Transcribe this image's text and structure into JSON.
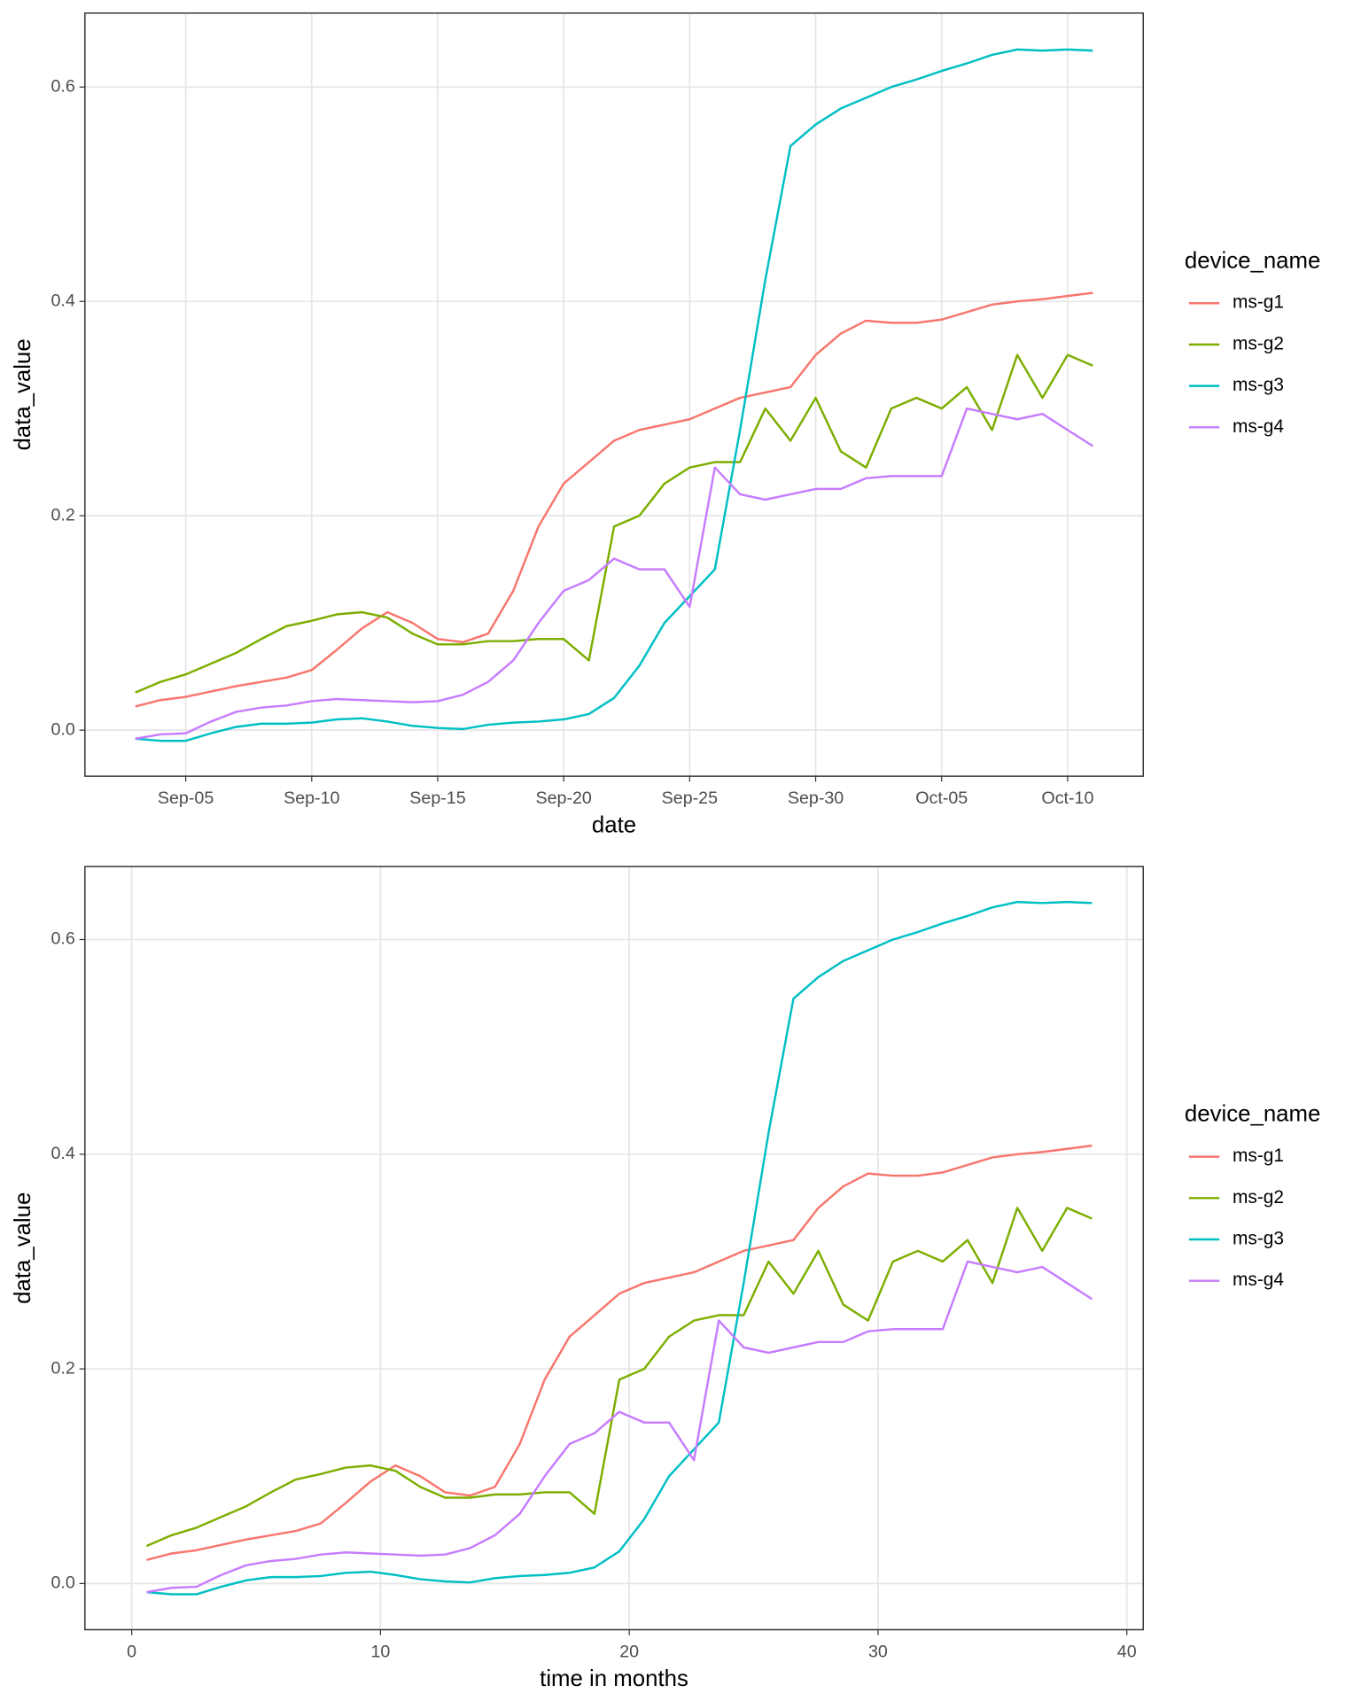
{
  "chart_data": [
    {
      "type": "line",
      "x_label": "date",
      "y_label": "data_value",
      "legend_title": "device_name",
      "legend": "right",
      "grid": true,
      "x": [
        "Sep-03",
        "Sep-04",
        "Sep-05",
        "Sep-06",
        "Sep-07",
        "Sep-08",
        "Sep-09",
        "Sep-10",
        "Sep-11",
        "Sep-12",
        "Sep-13",
        "Sep-14",
        "Sep-15",
        "Sep-16",
        "Sep-17",
        "Sep-18",
        "Sep-19",
        "Sep-20",
        "Sep-21",
        "Sep-22",
        "Sep-23",
        "Sep-24",
        "Sep-25",
        "Sep-26",
        "Sep-27",
        "Sep-28",
        "Sep-29",
        "Sep-30",
        "Oct-01",
        "Oct-02",
        "Oct-03",
        "Oct-04",
        "Oct-05",
        "Oct-06",
        "Oct-07",
        "Oct-08",
        "Oct-09",
        "Oct-10",
        "Oct-11"
      ],
      "xlim": [
        "Sep-01",
        "Oct-13"
      ],
      "xticks": [
        "Sep-05",
        "Sep-10",
        "Sep-15",
        "Sep-20",
        "Sep-25",
        "Sep-30",
        "Oct-05",
        "Oct-10"
      ],
      "ylim": [
        -0.043,
        0.669
      ],
      "yticks": [
        {
          "value": 0,
          "label": "0.0"
        },
        0.2,
        0.4,
        0.6
      ],
      "series": [
        {
          "name": "ms-g1",
          "color": "#F8766D",
          "values": [
            0.022,
            0.028,
            0.031,
            0.036,
            0.041,
            0.045,
            0.049,
            0.056,
            0.075,
            0.095,
            0.11,
            0.1,
            0.085,
            0.082,
            0.09,
            0.13,
            0.19,
            0.23,
            0.25,
            0.27,
            0.28,
            0.285,
            0.29,
            0.3,
            0.31,
            0.315,
            0.32,
            0.35,
            0.37,
            0.382,
            0.38,
            0.38,
            0.383,
            0.39,
            0.397,
            0.4,
            0.402,
            0.405,
            0.408
          ]
        },
        {
          "name": "ms-g2",
          "color": "#7CAE00",
          "values": [
            0.035,
            0.045,
            0.052,
            0.062,
            0.072,
            0.085,
            0.097,
            0.102,
            0.108,
            0.11,
            0.105,
            0.09,
            0.08,
            0.08,
            0.083,
            0.083,
            0.085,
            0.085,
            0.065,
            0.19,
            0.2,
            0.23,
            0.245,
            0.25,
            0.25,
            0.3,
            0.27,
            0.31,
            0.26,
            0.245,
            0.3,
            0.31,
            0.3,
            0.32,
            0.28,
            0.35,
            0.31,
            0.35,
            0.34
          ]
        },
        {
          "name": "ms-g3",
          "color": "#00BFC4",
          "values": [
            -0.008,
            -0.01,
            -0.01,
            -0.003,
            0.003,
            0.006,
            0.006,
            0.007,
            0.01,
            0.011,
            0.008,
            0.004,
            0.002,
            0.001,
            0.005,
            0.007,
            0.008,
            0.01,
            0.015,
            0.03,
            0.06,
            0.1,
            0.125,
            0.15,
            0.28,
            0.42,
            0.545,
            0.565,
            0.58,
            0.59,
            0.6,
            0.607,
            0.615,
            0.622,
            0.63,
            0.635,
            0.634,
            0.635,
            0.634
          ]
        },
        {
          "name": "ms-g4",
          "color": "#C77CFF",
          "values": [
            -0.008,
            -0.004,
            -0.003,
            0.008,
            0.017,
            0.021,
            0.023,
            0.027,
            0.029,
            0.028,
            0.027,
            0.026,
            0.027,
            0.033,
            0.045,
            0.065,
            0.1,
            0.13,
            0.14,
            0.16,
            0.15,
            0.15,
            0.115,
            0.245,
            0.22,
            0.215,
            0.22,
            0.225,
            0.225,
            0.235,
            0.237,
            0.237,
            0.237,
            0.3,
            0.295,
            0.29,
            0.295,
            0.28,
            0.265
          ]
        }
      ]
    },
    {
      "type": "line",
      "x_label": "time in months",
      "y_label": "data_value",
      "legend_title": "device_name",
      "legend": "right",
      "grid": true,
      "x": [
        0.6,
        1.6,
        2.6,
        3.6,
        4.6,
        5.6,
        6.6,
        7.6,
        8.6,
        9.6,
        10.6,
        11.6,
        12.6,
        13.6,
        14.6,
        15.6,
        16.6,
        17.6,
        18.6,
        19.6,
        20.6,
        21.6,
        22.6,
        23.6,
        24.6,
        25.6,
        26.6,
        27.6,
        28.6,
        29.6,
        30.6,
        31.6,
        32.6,
        33.6,
        34.6,
        35.6,
        36.6,
        37.6,
        38.6
      ],
      "xlim": [
        -1.88,
        40.66
      ],
      "xticks": [
        0,
        10,
        20,
        30,
        40
      ],
      "ylim": [
        -0.043,
        0.668
      ],
      "yticks": [
        {
          "value": 0,
          "label": "0.0"
        },
        0.2,
        0.4,
        0.6
      ],
      "series": [
        {
          "name": "ms-g1",
          "color": "#F8766D",
          "values": [
            0.022,
            0.028,
            0.031,
            0.036,
            0.041,
            0.045,
            0.049,
            0.056,
            0.075,
            0.095,
            0.11,
            0.1,
            0.085,
            0.082,
            0.09,
            0.13,
            0.19,
            0.23,
            0.25,
            0.27,
            0.28,
            0.285,
            0.29,
            0.3,
            0.31,
            0.315,
            0.32,
            0.35,
            0.37,
            0.382,
            0.38,
            0.38,
            0.383,
            0.39,
            0.397,
            0.4,
            0.402,
            0.405,
            0.408
          ]
        },
        {
          "name": "ms-g2",
          "color": "#7CAE00",
          "values": [
            0.035,
            0.045,
            0.052,
            0.062,
            0.072,
            0.085,
            0.097,
            0.102,
            0.108,
            0.11,
            0.105,
            0.09,
            0.08,
            0.08,
            0.083,
            0.083,
            0.085,
            0.085,
            0.065,
            0.19,
            0.2,
            0.23,
            0.245,
            0.25,
            0.25,
            0.3,
            0.27,
            0.31,
            0.26,
            0.245,
            0.3,
            0.31,
            0.3,
            0.32,
            0.28,
            0.35,
            0.31,
            0.35,
            0.34
          ]
        },
        {
          "name": "ms-g3",
          "color": "#00BFC4",
          "values": [
            -0.008,
            -0.01,
            -0.01,
            -0.003,
            0.003,
            0.006,
            0.006,
            0.007,
            0.01,
            0.011,
            0.008,
            0.004,
            0.002,
            0.001,
            0.005,
            0.007,
            0.008,
            0.01,
            0.015,
            0.03,
            0.06,
            0.1,
            0.125,
            0.15,
            0.28,
            0.42,
            0.545,
            0.565,
            0.58,
            0.59,
            0.6,
            0.607,
            0.615,
            0.622,
            0.63,
            0.635,
            0.634,
            0.635,
            0.634
          ]
        },
        {
          "name": "ms-g4",
          "color": "#C77CFF",
          "values": [
            -0.008,
            -0.004,
            -0.003,
            0.008,
            0.017,
            0.021,
            0.023,
            0.027,
            0.029,
            0.028,
            0.027,
            0.026,
            0.027,
            0.033,
            0.045,
            0.065,
            0.1,
            0.13,
            0.14,
            0.16,
            0.15,
            0.15,
            0.115,
            0.245,
            0.22,
            0.215,
            0.22,
            0.225,
            0.225,
            0.235,
            0.237,
            0.237,
            0.237,
            0.3,
            0.295,
            0.29,
            0.295,
            0.28,
            0.265
          ]
        }
      ]
    }
  ]
}
